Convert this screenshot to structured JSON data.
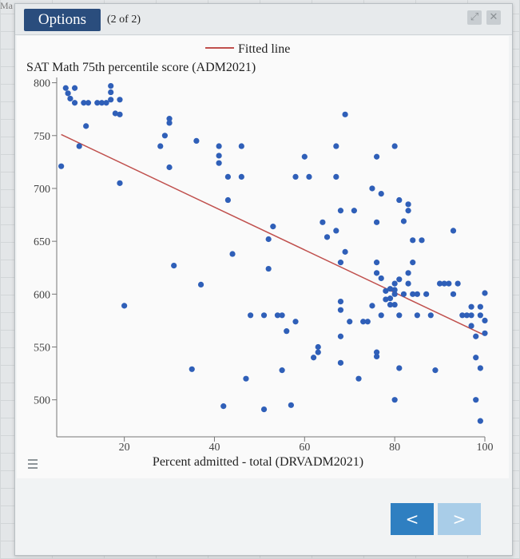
{
  "corner_tag": "Ma",
  "toolbar": {
    "options_label": "Options",
    "counter": "(2 of 2)",
    "expand_icon": "expand-icon",
    "close_icon": "close-icon"
  },
  "menu_icon": "hamburger-menu-icon",
  "nav": {
    "prev_label": "<",
    "next_label": ">"
  },
  "chart_data": {
    "type": "scatter",
    "title": "SAT Math 75th percentile score (ADM2021)",
    "xlabel": "Percent admitted - total (DRVADM2021)",
    "ylabel": "",
    "xlim": [
      5,
      100
    ],
    "ylim": [
      465,
      805
    ],
    "x_ticks": [
      20,
      40,
      60,
      80,
      100
    ],
    "y_ticks": [
      500,
      550,
      600,
      650,
      700,
      750,
      800
    ],
    "legend": {
      "label": "Fitted line",
      "position": "top-center"
    },
    "colors": {
      "points": "#2f5fb8",
      "fit": "#c0504d"
    },
    "fitted_line": {
      "x": [
        6,
        100
      ],
      "y": [
        751,
        561
      ]
    },
    "points": [
      {
        "x": 6,
        "y": 721
      },
      {
        "x": 7,
        "y": 795
      },
      {
        "x": 7.5,
        "y": 790
      },
      {
        "x": 8,
        "y": 785
      },
      {
        "x": 9,
        "y": 795
      },
      {
        "x": 9,
        "y": 781
      },
      {
        "x": 10,
        "y": 740
      },
      {
        "x": 11,
        "y": 781
      },
      {
        "x": 11.5,
        "y": 759
      },
      {
        "x": 12,
        "y": 781
      },
      {
        "x": 14,
        "y": 781
      },
      {
        "x": 15,
        "y": 781
      },
      {
        "x": 16,
        "y": 781
      },
      {
        "x": 17,
        "y": 784
      },
      {
        "x": 17,
        "y": 791
      },
      {
        "x": 17,
        "y": 797
      },
      {
        "x": 18,
        "y": 771
      },
      {
        "x": 19,
        "y": 784
      },
      {
        "x": 19,
        "y": 770
      },
      {
        "x": 19,
        "y": 705
      },
      {
        "x": 20,
        "y": 589
      },
      {
        "x": 28,
        "y": 740
      },
      {
        "x": 29,
        "y": 750
      },
      {
        "x": 30,
        "y": 762
      },
      {
        "x": 30,
        "y": 766
      },
      {
        "x": 30,
        "y": 720
      },
      {
        "x": 31,
        "y": 627
      },
      {
        "x": 35,
        "y": 529
      },
      {
        "x": 36,
        "y": 745
      },
      {
        "x": 37,
        "y": 609
      },
      {
        "x": 41,
        "y": 740
      },
      {
        "x": 41,
        "y": 731
      },
      {
        "x": 41,
        "y": 724
      },
      {
        "x": 42,
        "y": 494
      },
      {
        "x": 43,
        "y": 711
      },
      {
        "x": 43,
        "y": 689
      },
      {
        "x": 44,
        "y": 638
      },
      {
        "x": 46,
        "y": 740
      },
      {
        "x": 46,
        "y": 711
      },
      {
        "x": 47,
        "y": 520
      },
      {
        "x": 48,
        "y": 580
      },
      {
        "x": 51,
        "y": 580
      },
      {
        "x": 51,
        "y": 491
      },
      {
        "x": 52,
        "y": 652
      },
      {
        "x": 52,
        "y": 624
      },
      {
        "x": 53,
        "y": 664
      },
      {
        "x": 54,
        "y": 580
      },
      {
        "x": 55,
        "y": 528
      },
      {
        "x": 55,
        "y": 580
      },
      {
        "x": 56,
        "y": 565
      },
      {
        "x": 57,
        "y": 495
      },
      {
        "x": 58,
        "y": 711
      },
      {
        "x": 58,
        "y": 574
      },
      {
        "x": 60,
        "y": 730
      },
      {
        "x": 61,
        "y": 711
      },
      {
        "x": 62,
        "y": 540
      },
      {
        "x": 63,
        "y": 545
      },
      {
        "x": 63,
        "y": 550
      },
      {
        "x": 64,
        "y": 668
      },
      {
        "x": 65,
        "y": 654
      },
      {
        "x": 67,
        "y": 740
      },
      {
        "x": 67,
        "y": 711
      },
      {
        "x": 67,
        "y": 660
      },
      {
        "x": 68,
        "y": 679
      },
      {
        "x": 68,
        "y": 585
      },
      {
        "x": 68,
        "y": 593
      },
      {
        "x": 68,
        "y": 560
      },
      {
        "x": 68,
        "y": 535
      },
      {
        "x": 68,
        "y": 630
      },
      {
        "x": 69,
        "y": 770
      },
      {
        "x": 69,
        "y": 640
      },
      {
        "x": 70,
        "y": 574
      },
      {
        "x": 71,
        "y": 679
      },
      {
        "x": 72,
        "y": 520
      },
      {
        "x": 73,
        "y": 574
      },
      {
        "x": 74,
        "y": 574
      },
      {
        "x": 75,
        "y": 589
      },
      {
        "x": 75,
        "y": 700
      },
      {
        "x": 76,
        "y": 730
      },
      {
        "x": 76,
        "y": 620
      },
      {
        "x": 76,
        "y": 630
      },
      {
        "x": 76,
        "y": 668
      },
      {
        "x": 76,
        "y": 545
      },
      {
        "x": 76,
        "y": 541
      },
      {
        "x": 77,
        "y": 695
      },
      {
        "x": 77,
        "y": 580
      },
      {
        "x": 77,
        "y": 615
      },
      {
        "x": 78,
        "y": 603
      },
      {
        "x": 78,
        "y": 595
      },
      {
        "x": 79,
        "y": 590
      },
      {
        "x": 79,
        "y": 596
      },
      {
        "x": 79,
        "y": 605
      },
      {
        "x": 80,
        "y": 740
      },
      {
        "x": 80,
        "y": 610
      },
      {
        "x": 80,
        "y": 604
      },
      {
        "x": 80,
        "y": 600
      },
      {
        "x": 80,
        "y": 590
      },
      {
        "x": 80,
        "y": 500
      },
      {
        "x": 81,
        "y": 614
      },
      {
        "x": 81,
        "y": 689
      },
      {
        "x": 81,
        "y": 580
      },
      {
        "x": 81,
        "y": 530
      },
      {
        "x": 82,
        "y": 600
      },
      {
        "x": 82,
        "y": 669
      },
      {
        "x": 83,
        "y": 685
      },
      {
        "x": 83,
        "y": 679
      },
      {
        "x": 83,
        "y": 620
      },
      {
        "x": 83,
        "y": 610
      },
      {
        "x": 84,
        "y": 651
      },
      {
        "x": 84,
        "y": 630
      },
      {
        "x": 84,
        "y": 600
      },
      {
        "x": 85,
        "y": 600
      },
      {
        "x": 85,
        "y": 580
      },
      {
        "x": 86,
        "y": 651
      },
      {
        "x": 87,
        "y": 600
      },
      {
        "x": 88,
        "y": 580
      },
      {
        "x": 89,
        "y": 528
      },
      {
        "x": 90,
        "y": 610
      },
      {
        "x": 91,
        "y": 610
      },
      {
        "x": 92,
        "y": 610
      },
      {
        "x": 93,
        "y": 600
      },
      {
        "x": 93,
        "y": 660
      },
      {
        "x": 94,
        "y": 610
      },
      {
        "x": 95,
        "y": 580
      },
      {
        "x": 96,
        "y": 580
      },
      {
        "x": 97,
        "y": 580
      },
      {
        "x": 97,
        "y": 588
      },
      {
        "x": 97,
        "y": 570
      },
      {
        "x": 98,
        "y": 560
      },
      {
        "x": 98,
        "y": 540
      },
      {
        "x": 98,
        "y": 500
      },
      {
        "x": 99,
        "y": 580
      },
      {
        "x": 99,
        "y": 588
      },
      {
        "x": 99,
        "y": 480
      },
      {
        "x": 100,
        "y": 563
      },
      {
        "x": 100,
        "y": 575
      },
      {
        "x": 100,
        "y": 601
      },
      {
        "x": 99,
        "y": 530
      }
    ]
  }
}
